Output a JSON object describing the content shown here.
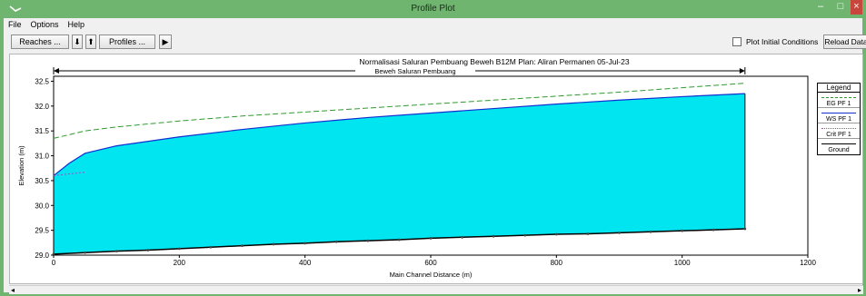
{
  "window": {
    "title": "Profile Plot",
    "controls": {
      "minimize": "–",
      "maximize": "□",
      "close": "×"
    }
  },
  "menu": [
    "File",
    "Options",
    "Help"
  ],
  "toolbar": {
    "reaches_label": "Reaches ...",
    "down_label": "⬇",
    "up_label": "⬆",
    "profiles_label": "Profiles ...",
    "play_label": "▶",
    "plot_initial_conditions_label": "Plot Initial Conditions",
    "plot_initial_conditions_checked": false,
    "reload_label": "Reload Data"
  },
  "plot": {
    "title": "Normalisasi Saluran Pembuang Beweh B12M        Plan: Aliran Permanen     05-Jul-23",
    "reach_label": "Beweh Saluran Pembuang"
  },
  "legend": {
    "title": "Legend",
    "entries": [
      {
        "label": "EG  PF 1",
        "color": "#2e9a2e",
        "style": "dashed"
      },
      {
        "label": "WS  PF 1",
        "color": "#1030d0",
        "style": "solid"
      },
      {
        "label": "Crit  PF 1",
        "color": "#c040c0",
        "style": "dotted"
      },
      {
        "label": "Ground",
        "color": "#000000",
        "style": "marker"
      }
    ]
  },
  "chart_data": {
    "type": "line",
    "title": "Normalisasi Saluran Pembuang Beweh B12M   Plan: Aliran Permanen   05-Jul-23",
    "xlabel": "Main Channel Distance (m)",
    "ylabel": "Elevation (m)",
    "xlim": [
      0,
      1200
    ],
    "ylim": [
      29.0,
      32.6
    ],
    "xticks": [
      0,
      200,
      400,
      600,
      800,
      1000,
      1200
    ],
    "yticks": [
      29.0,
      29.5,
      30.0,
      30.5,
      31.0,
      31.5,
      32.0,
      32.5
    ],
    "fill_color": "#00e5f0",
    "series": [
      {
        "name": "EG PF 1",
        "color": "#2e9a2e",
        "x": [
          0,
          50,
          100,
          200,
          300,
          400,
          500,
          600,
          700,
          800,
          900,
          1000,
          1100
        ],
        "y": [
          31.35,
          31.5,
          31.58,
          31.7,
          31.8,
          31.88,
          31.96,
          32.04,
          32.12,
          32.2,
          32.28,
          32.37,
          32.46
        ]
      },
      {
        "name": "WS PF 1",
        "color": "#1030d0",
        "x": [
          0,
          25,
          50,
          100,
          200,
          300,
          400,
          500,
          600,
          700,
          800,
          900,
          1000,
          1100
        ],
        "y": [
          30.6,
          30.85,
          31.05,
          31.2,
          31.38,
          31.53,
          31.66,
          31.77,
          31.86,
          31.95,
          32.04,
          32.12,
          32.19,
          32.25
        ]
      },
      {
        "name": "Crit PF 1",
        "color": "#c040c0",
        "x": [
          0,
          50
        ],
        "y": [
          30.6,
          30.67
        ]
      },
      {
        "name": "Ground",
        "color": "#000000",
        "x": [
          0,
          50,
          100,
          150,
          200,
          250,
          300,
          350,
          400,
          450,
          500,
          550,
          600,
          650,
          700,
          750,
          800,
          850,
          900,
          950,
          1000,
          1050,
          1100
        ],
        "y": [
          29.02,
          29.05,
          29.08,
          29.1,
          29.13,
          29.16,
          29.19,
          29.22,
          29.24,
          29.27,
          29.29,
          29.31,
          29.34,
          29.36,
          29.38,
          29.4,
          29.42,
          29.43,
          29.45,
          29.47,
          29.49,
          29.51,
          29.53
        ]
      }
    ]
  }
}
